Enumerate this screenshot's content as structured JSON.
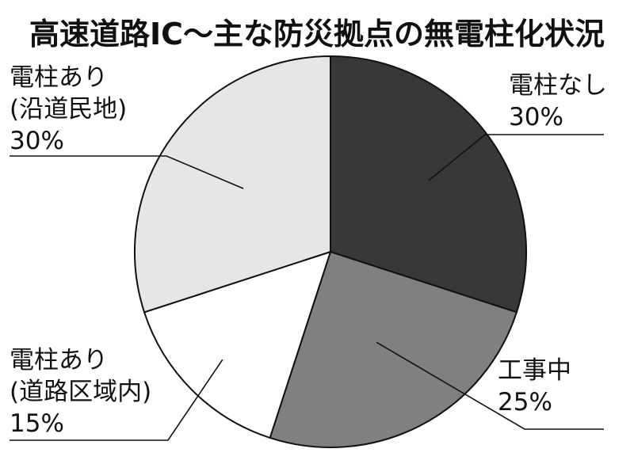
{
  "chart_data": {
    "type": "pie",
    "title": "高速道路IC～主な防災拠点の無電柱化状況",
    "unit": "%",
    "slices": [
      {
        "name": "電柱なし",
        "name_lines": [
          "電柱なし"
        ],
        "value": 30,
        "label": "30%",
        "color": "#383838"
      },
      {
        "name": "工事中",
        "name_lines": [
          "工事中"
        ],
        "value": 25,
        "label": "25%",
        "color": "#808080"
      },
      {
        "name": "電柱あり（道路区域内）",
        "name_lines": [
          "電柱あり",
          "(道路区域内)"
        ],
        "value": 15,
        "label": "15%",
        "color": "#ffffff"
      },
      {
        "name": "電柱あり（沿道民地）",
        "name_lines": [
          "電柱あり",
          "(沿道民地)"
        ],
        "value": 30,
        "label": "30%",
        "color": "#e6e6e6"
      }
    ]
  }
}
